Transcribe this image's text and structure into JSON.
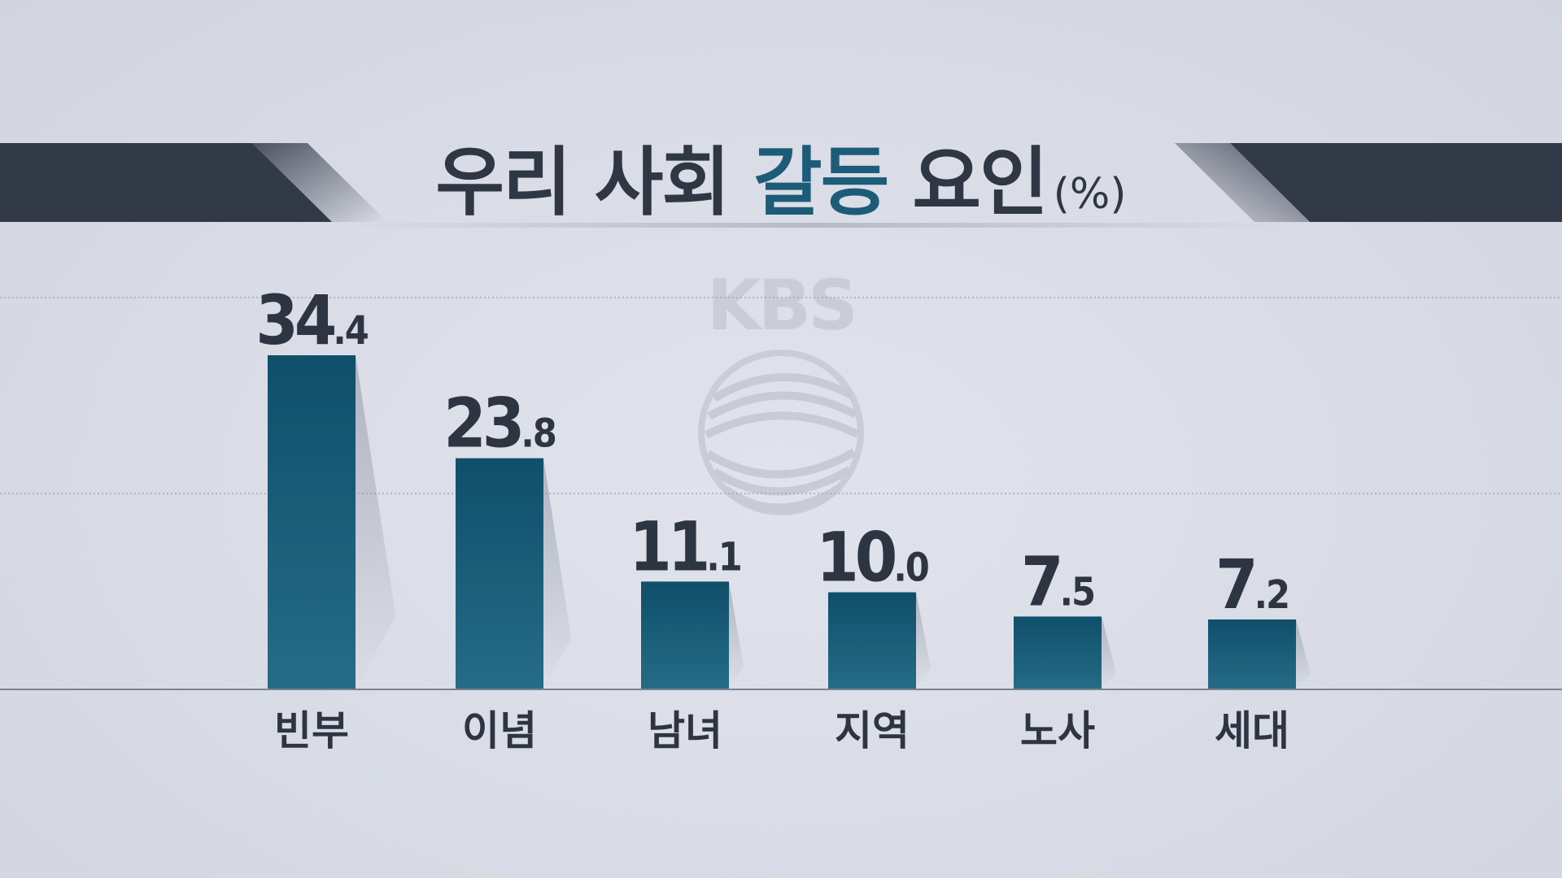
{
  "title": {
    "prefix": "우리 사회 ",
    "accent": "갈등",
    "suffix": " 요인",
    "unit": "(%)"
  },
  "watermark": "KBS",
  "colors": {
    "band": "#323a48",
    "bar_top": "#0f4f6b",
    "bar_bottom": "#256c86",
    "title_accent": "#1d5c78",
    "text": "#2e3542",
    "background": "#d9dce6"
  },
  "chart_data": {
    "type": "bar",
    "title": "우리 사회 갈등 요인 (%)",
    "categories": [
      "빈부",
      "이념",
      "남녀",
      "지역",
      "노사",
      "세대"
    ],
    "values": [
      34.4,
      23.8,
      11.1,
      10.0,
      7.5,
      7.2
    ],
    "value_labels": [
      {
        "int": "34",
        "dec": ".4"
      },
      {
        "int": "23",
        "dec": ".8"
      },
      {
        "int": "11",
        "dec": ".1"
      },
      {
        "int": "10",
        "dec": ".0"
      },
      {
        "int": "7",
        "dec": ".5"
      },
      {
        "int": "7",
        "dec": ".2"
      }
    ],
    "xlabel": "",
    "ylabel": "",
    "ylim": [
      0,
      40
    ],
    "grid": "dotted horizontal",
    "legend": "none"
  }
}
